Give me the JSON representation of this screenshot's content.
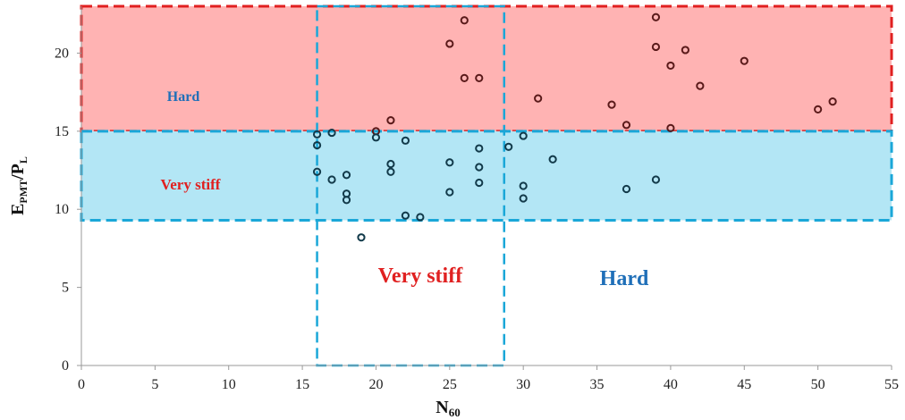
{
  "chart_data": {
    "type": "scatter",
    "xlabel": "N60",
    "ylabel": "EPMT/PL",
    "xlim": [
      0,
      55
    ],
    "ylim": [
      0,
      23
    ],
    "xticks": [
      "0",
      "5",
      "10",
      "15",
      "20",
      "25",
      "30",
      "35",
      "40",
      "45",
      "50",
      "55"
    ],
    "yticks": [
      "0",
      "5",
      "10",
      "15",
      "20"
    ],
    "grid": false,
    "zones": {
      "epmt": [
        {
          "label": "Hard",
          "from": 15,
          "to": 23,
          "fill": "#ffb3b3",
          "border": "#e02020",
          "label_color": "#1f6fb8"
        },
        {
          "label": "Very stiff",
          "from": 9.3,
          "to": 15,
          "fill": "#b3e6f5",
          "border": "#1aa7d8",
          "label_color": "#e02020"
        }
      ],
      "n60": [
        {
          "label": "Very stiff",
          "from": 16,
          "to": 28.7,
          "border": "#1aa7d8",
          "label_color": "#e02020"
        },
        {
          "label": "Hard",
          "from": 28.7,
          "to": 55,
          "border": "#1aa7d8",
          "label_color": "#1f6fb8"
        }
      ]
    },
    "points": [
      [
        25,
        20.6
      ],
      [
        26,
        22.1
      ],
      [
        26,
        18.4
      ],
      [
        27,
        18.4
      ],
      [
        39,
        22.3
      ],
      [
        39,
        20.4
      ],
      [
        40,
        19.2
      ],
      [
        41,
        20.2
      ],
      [
        45,
        19.5
      ],
      [
        42,
        17.9
      ],
      [
        21,
        15.7
      ],
      [
        31,
        17.1
      ],
      [
        36,
        16.7
      ],
      [
        37,
        15.4
      ],
      [
        40,
        15.2
      ],
      [
        50,
        16.4
      ],
      [
        51,
        16.9
      ],
      [
        16,
        14.8
      ],
      [
        17,
        14.9
      ],
      [
        20,
        15.0
      ],
      [
        20,
        14.6
      ],
      [
        16,
        14.1
      ],
      [
        22,
        14.4
      ],
      [
        27,
        13.9
      ],
      [
        29,
        14.0
      ],
      [
        30,
        14.7
      ],
      [
        32,
        13.2
      ],
      [
        25,
        13.0
      ],
      [
        27,
        12.7
      ],
      [
        21,
        12.9
      ],
      [
        21,
        12.4
      ],
      [
        16,
        12.4
      ],
      [
        17,
        11.9
      ],
      [
        18,
        12.2
      ],
      [
        18,
        11.0
      ],
      [
        18,
        10.6
      ],
      [
        25,
        11.1
      ],
      [
        27,
        11.7
      ],
      [
        30,
        11.5
      ],
      [
        30,
        10.7
      ],
      [
        37,
        11.3
      ],
      [
        39,
        11.9
      ],
      [
        22,
        9.6
      ],
      [
        23,
        9.5
      ],
      [
        19,
        8.2
      ]
    ]
  }
}
